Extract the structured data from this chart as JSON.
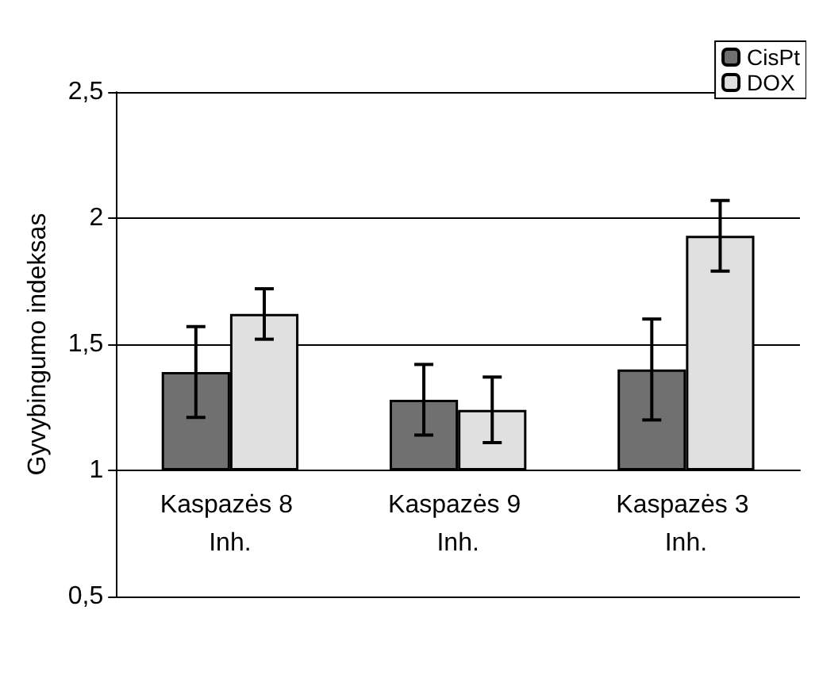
{
  "chart_data": {
    "type": "bar",
    "ylabel": "Gyvybingumo indeksas",
    "categories": [
      "Kaspazės 8 Inh.",
      "Kaspazės 9 Inh.",
      "Kaspazės 3 Inh."
    ],
    "series": [
      {
        "name": "CisPt",
        "color": "#707070",
        "base": [
          1,
          1,
          1
        ],
        "values": [
          0.39,
          0.28,
          0.4
        ],
        "errors": [
          0.18,
          0.14,
          0.2
        ]
      },
      {
        "name": "DOX",
        "color": "#e0e0e0",
        "base": [
          1,
          1,
          1
        ],
        "values": [
          0.62,
          0.24,
          0.93
        ],
        "errors": [
          0.1,
          0.13,
          0.14
        ]
      }
    ],
    "ylim": [
      0.5,
      2.5
    ],
    "yticks": [
      {
        "value": 0.5,
        "label": "0,5"
      },
      1,
      {
        "value": 1.5,
        "label": "1,5"
      },
      2,
      {
        "value": 2.5,
        "label": "2,5"
      }
    ],
    "grid": "y",
    "legend": "top right"
  }
}
